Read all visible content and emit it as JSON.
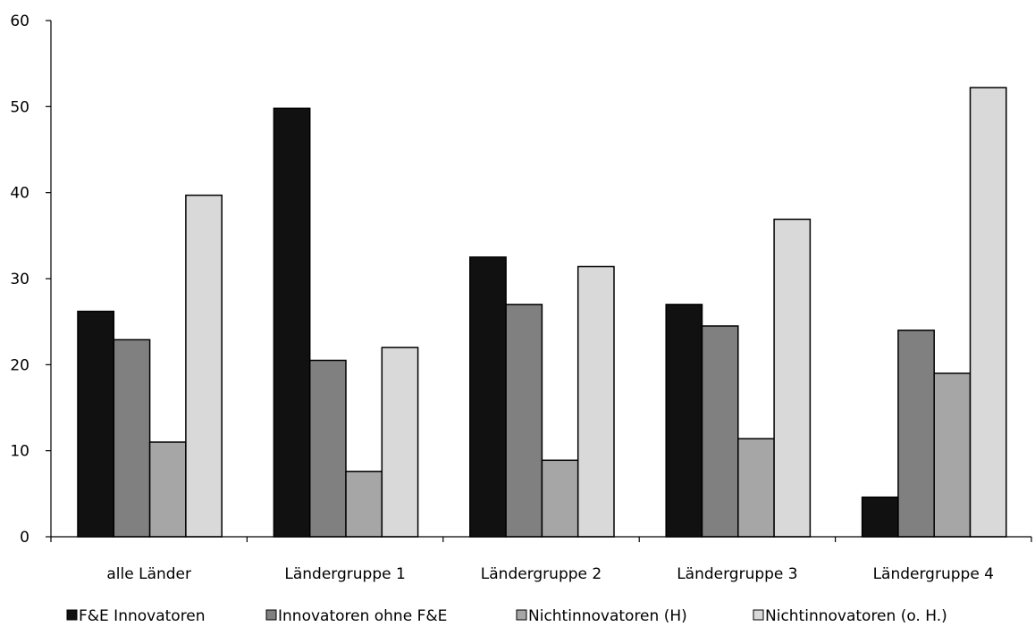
{
  "chart_data": {
    "type": "bar",
    "title": "",
    "xlabel": "",
    "ylabel": "",
    "ylim": [
      0,
      60
    ],
    "yticks": [
      0,
      10,
      20,
      30,
      40,
      50,
      60
    ],
    "grid": false,
    "legend_position": "bottom",
    "categories": [
      "alle Länder",
      "Ländergruppe 1",
      "Ländergruppe 2",
      "Ländergruppe 3",
      "Ländergruppe 4"
    ],
    "series": [
      {
        "name": "F&E Innovatoren",
        "color": "#111111",
        "values": [
          26.2,
          49.8,
          32.5,
          27.0,
          4.6
        ]
      },
      {
        "name": "Innovatoren ohne F&E",
        "color": "#808080",
        "values": [
          22.9,
          20.5,
          27.0,
          24.5,
          24.0
        ]
      },
      {
        "name": "Nichtinnovatoren (H)",
        "color": "#a6a6a6",
        "values": [
          11.0,
          7.6,
          8.9,
          11.4,
          19.0
        ]
      },
      {
        "name": "Nichtinnovatoren (o. H.)",
        "color": "#d9d9d9",
        "values": [
          39.7,
          22.0,
          31.4,
          36.9,
          52.2
        ]
      }
    ]
  }
}
